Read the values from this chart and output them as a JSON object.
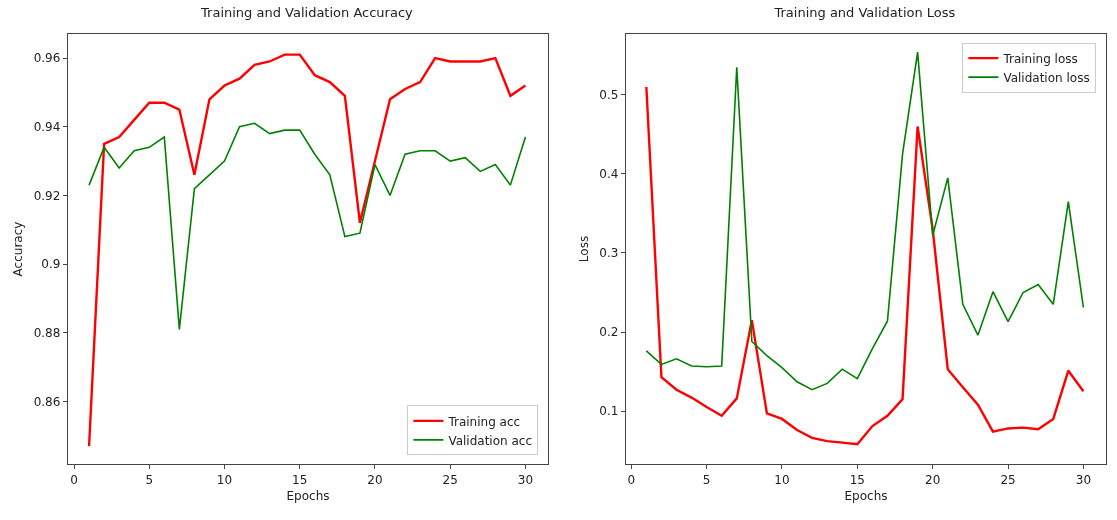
{
  "chart_data": [
    {
      "type": "line",
      "title": "Training and Validation Accuracy",
      "xlabel": "Epochs",
      "ylabel": "Accuracy",
      "x": [
        1,
        2,
        3,
        4,
        5,
        6,
        7,
        8,
        9,
        10,
        11,
        12,
        13,
        14,
        15,
        16,
        17,
        18,
        19,
        20,
        21,
        22,
        23,
        24,
        25,
        26,
        27,
        28,
        29,
        30
      ],
      "xlim": [
        -0.4,
        31.5
      ],
      "xticks": [
        0,
        5,
        10,
        15,
        20,
        25,
        30
      ],
      "ylim": [
        0.8418,
        0.967
      ],
      "yticks": [
        0.86,
        0.88,
        0.9,
        0.92,
        0.94,
        0.96
      ],
      "grid": false,
      "legend": "bottom right",
      "series": [
        {
          "name": "Training acc",
          "color": "#ff0000",
          "values": [
            0.847,
            0.935,
            0.937,
            0.942,
            0.947,
            0.947,
            0.945,
            0.926,
            0.948,
            0.952,
            0.954,
            0.958,
            0.959,
            0.961,
            0.961,
            0.955,
            0.953,
            0.949,
            0.912,
            0.93,
            0.948,
            0.951,
            0.953,
            0.96,
            0.959,
            0.959,
            0.959,
            0.96,
            0.949,
            0.952
          ]
        },
        {
          "name": "Validation acc",
          "color": "#008000",
          "values": [
            0.923,
            0.934,
            0.928,
            0.933,
            0.934,
            0.937,
            0.881,
            0.922,
            0.926,
            0.93,
            0.94,
            0.941,
            0.938,
            0.939,
            0.939,
            0.932,
            0.926,
            0.908,
            0.909,
            0.929,
            0.92,
            0.932,
            0.933,
            0.933,
            0.93,
            0.931,
            0.927,
            0.929,
            0.923,
            0.937
          ]
        }
      ]
    },
    {
      "type": "line",
      "title": "Training and Validation Loss",
      "xlabel": "Epochs",
      "ylabel": "Loss",
      "x": [
        1,
        2,
        3,
        4,
        5,
        6,
        7,
        8,
        9,
        10,
        11,
        12,
        13,
        14,
        15,
        16,
        17,
        18,
        19,
        20,
        21,
        22,
        23,
        24,
        25,
        26,
        27,
        28,
        29,
        30
      ],
      "xlim": [
        -0.35,
        31.5
      ],
      "xticks": [
        0,
        5,
        10,
        15,
        20,
        25,
        30
      ],
      "ylim": [
        0.033,
        0.577
      ],
      "yticks": [
        0.1,
        0.2,
        0.3,
        0.4,
        0.5
      ],
      "grid": false,
      "legend": "top right",
      "series": [
        {
          "name": "Training loss",
          "color": "#ff0000",
          "values": [
            0.51,
            0.143,
            0.127,
            0.117,
            0.105,
            0.094,
            0.116,
            0.215,
            0.097,
            0.09,
            0.076,
            0.066,
            0.062,
            0.06,
            0.058,
            0.081,
            0.094,
            0.115,
            0.46,
            0.33,
            0.153,
            0.13,
            0.108,
            0.074,
            0.078,
            0.079,
            0.077,
            0.09,
            0.151,
            0.125
          ]
        },
        {
          "name": "Validation loss",
          "color": "#008000",
          "values": [
            0.176,
            0.159,
            0.166,
            0.157,
            0.156,
            0.157,
            0.535,
            0.188,
            0.17,
            0.155,
            0.137,
            0.127,
            0.135,
            0.153,
            0.141,
            0.179,
            0.214,
            0.425,
            0.554,
            0.322,
            0.395,
            0.235,
            0.196,
            0.251,
            0.213,
            0.25,
            0.26,
            0.235,
            0.365,
            0.231
          ]
        }
      ]
    }
  ]
}
